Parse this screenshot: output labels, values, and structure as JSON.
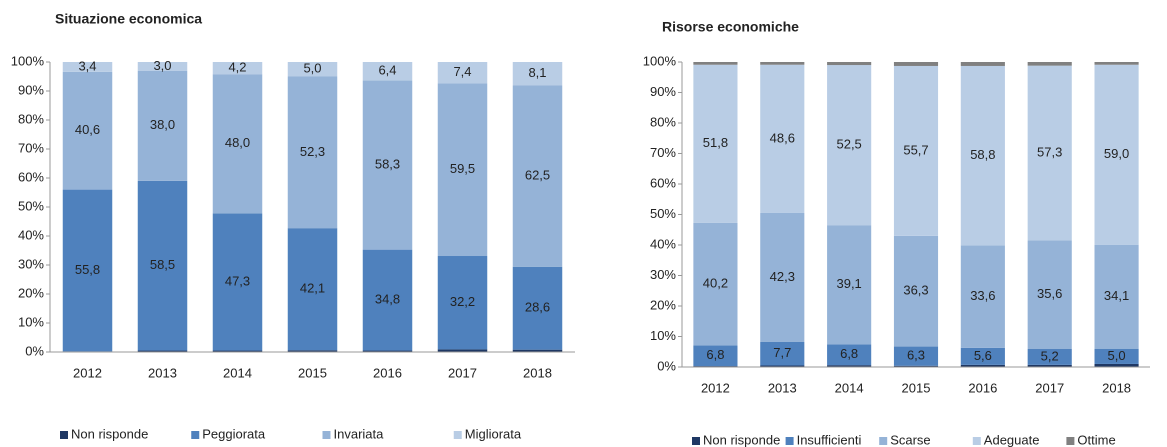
{
  "chart_data": [
    {
      "type": "bar",
      "stacked": true,
      "title": "Situazione economica",
      "categories": [
        "2012",
        "2013",
        "2014",
        "2015",
        "2016",
        "2017",
        "2018"
      ],
      "series": [
        {
          "name": "Non risponde",
          "color": "#1f3864",
          "values": [
            0.2,
            0.5,
            0.5,
            0.6,
            0.5,
            0.9,
            0.8
          ]
        },
        {
          "name": "Peggiorata",
          "color": "#4f81bd",
          "values": [
            55.8,
            58.5,
            47.3,
            42.1,
            34.8,
            32.2,
            28.6
          ],
          "value_labels": [
            "55,8",
            "58,5",
            "47,3",
            "42,1",
            "34,8",
            "32,2",
            "28,6"
          ]
        },
        {
          "name": "Invariata",
          "color": "#95b3d7",
          "values": [
            40.6,
            38.0,
            48.0,
            52.3,
            58.3,
            59.5,
            62.5
          ],
          "value_labels": [
            "40,6",
            "38,0",
            "48,0",
            "52,3",
            "58,3",
            "59,5",
            "62,5"
          ]
        },
        {
          "name": "Migliorata",
          "color": "#b9cde5",
          "values": [
            3.4,
            3.0,
            4.2,
            5.0,
            6.4,
            7.4,
            8.1
          ],
          "value_labels": [
            "3,4",
            "3,0",
            "4,2",
            "5,0",
            "6,4",
            "7,4",
            "8,1"
          ]
        }
      ],
      "ylim": [
        0,
        100
      ],
      "yticks": [
        {
          "value": 0,
          "label": "0%"
        },
        {
          "value": 10,
          "label": "10%"
        },
        {
          "value": 20,
          "label": "20%"
        },
        {
          "value": 30,
          "label": "30%"
        },
        {
          "value": 40,
          "label": "40%"
        },
        {
          "value": 50,
          "label": "50%"
        },
        {
          "value": 60,
          "label": "60%"
        },
        {
          "value": 70,
          "label": "70%"
        },
        {
          "value": 80,
          "label": "80%"
        },
        {
          "value": 90,
          "label": "90%"
        },
        {
          "value": 100,
          "label": "100%"
        }
      ],
      "legend": "bottom"
    },
    {
      "type": "bar",
      "stacked": true,
      "title": "Risorse economiche",
      "categories": [
        "2012",
        "2013",
        "2014",
        "2015",
        "2016",
        "2017",
        "2018"
      ],
      "series": [
        {
          "name": "Non risponde",
          "color": "#1f3864",
          "values": [
            0.3,
            0.5,
            0.6,
            0.4,
            0.7,
            0.7,
            1.0
          ]
        },
        {
          "name": "Insufficienti",
          "color": "#4f81bd",
          "values": [
            6.8,
            7.7,
            6.8,
            6.3,
            5.6,
            5.2,
            5.0
          ],
          "value_labels": [
            "6,8",
            "7,7",
            "6,8",
            "6,3",
            "5,6",
            "5,2",
            "5,0"
          ]
        },
        {
          "name": "Scarse",
          "color": "#95b3d7",
          "values": [
            40.2,
            42.3,
            39.1,
            36.3,
            33.6,
            35.6,
            34.1
          ],
          "value_labels": [
            "40,2",
            "42,3",
            "39,1",
            "36,3",
            "33,6",
            "35,6",
            "34,1"
          ]
        },
        {
          "name": "Adeguate",
          "color": "#b9cde5",
          "values": [
            51.8,
            48.6,
            52.5,
            55.7,
            58.8,
            57.3,
            59.0
          ],
          "value_labels": [
            "51,8",
            "48,6",
            "52,5",
            "55,7",
            "58,8",
            "57,3",
            "59,0"
          ]
        },
        {
          "name": "Ottime",
          "color": "#808080",
          "values": [
            0.9,
            0.9,
            1.0,
            1.3,
            1.3,
            1.2,
            0.9
          ]
        }
      ],
      "ylim": [
        0,
        100
      ],
      "yticks": [
        {
          "value": 0,
          "label": "0%"
        },
        {
          "value": 10,
          "label": "10%"
        },
        {
          "value": 20,
          "label": "20%"
        },
        {
          "value": 30,
          "label": "30%"
        },
        {
          "value": 40,
          "label": "40%"
        },
        {
          "value": 50,
          "label": "50%"
        },
        {
          "value": 60,
          "label": "60%"
        },
        {
          "value": 70,
          "label": "70%"
        },
        {
          "value": 80,
          "label": "80%"
        },
        {
          "value": 90,
          "label": "90%"
        },
        {
          "value": 100,
          "label": "100%"
        }
      ],
      "legend": "bottom"
    }
  ]
}
